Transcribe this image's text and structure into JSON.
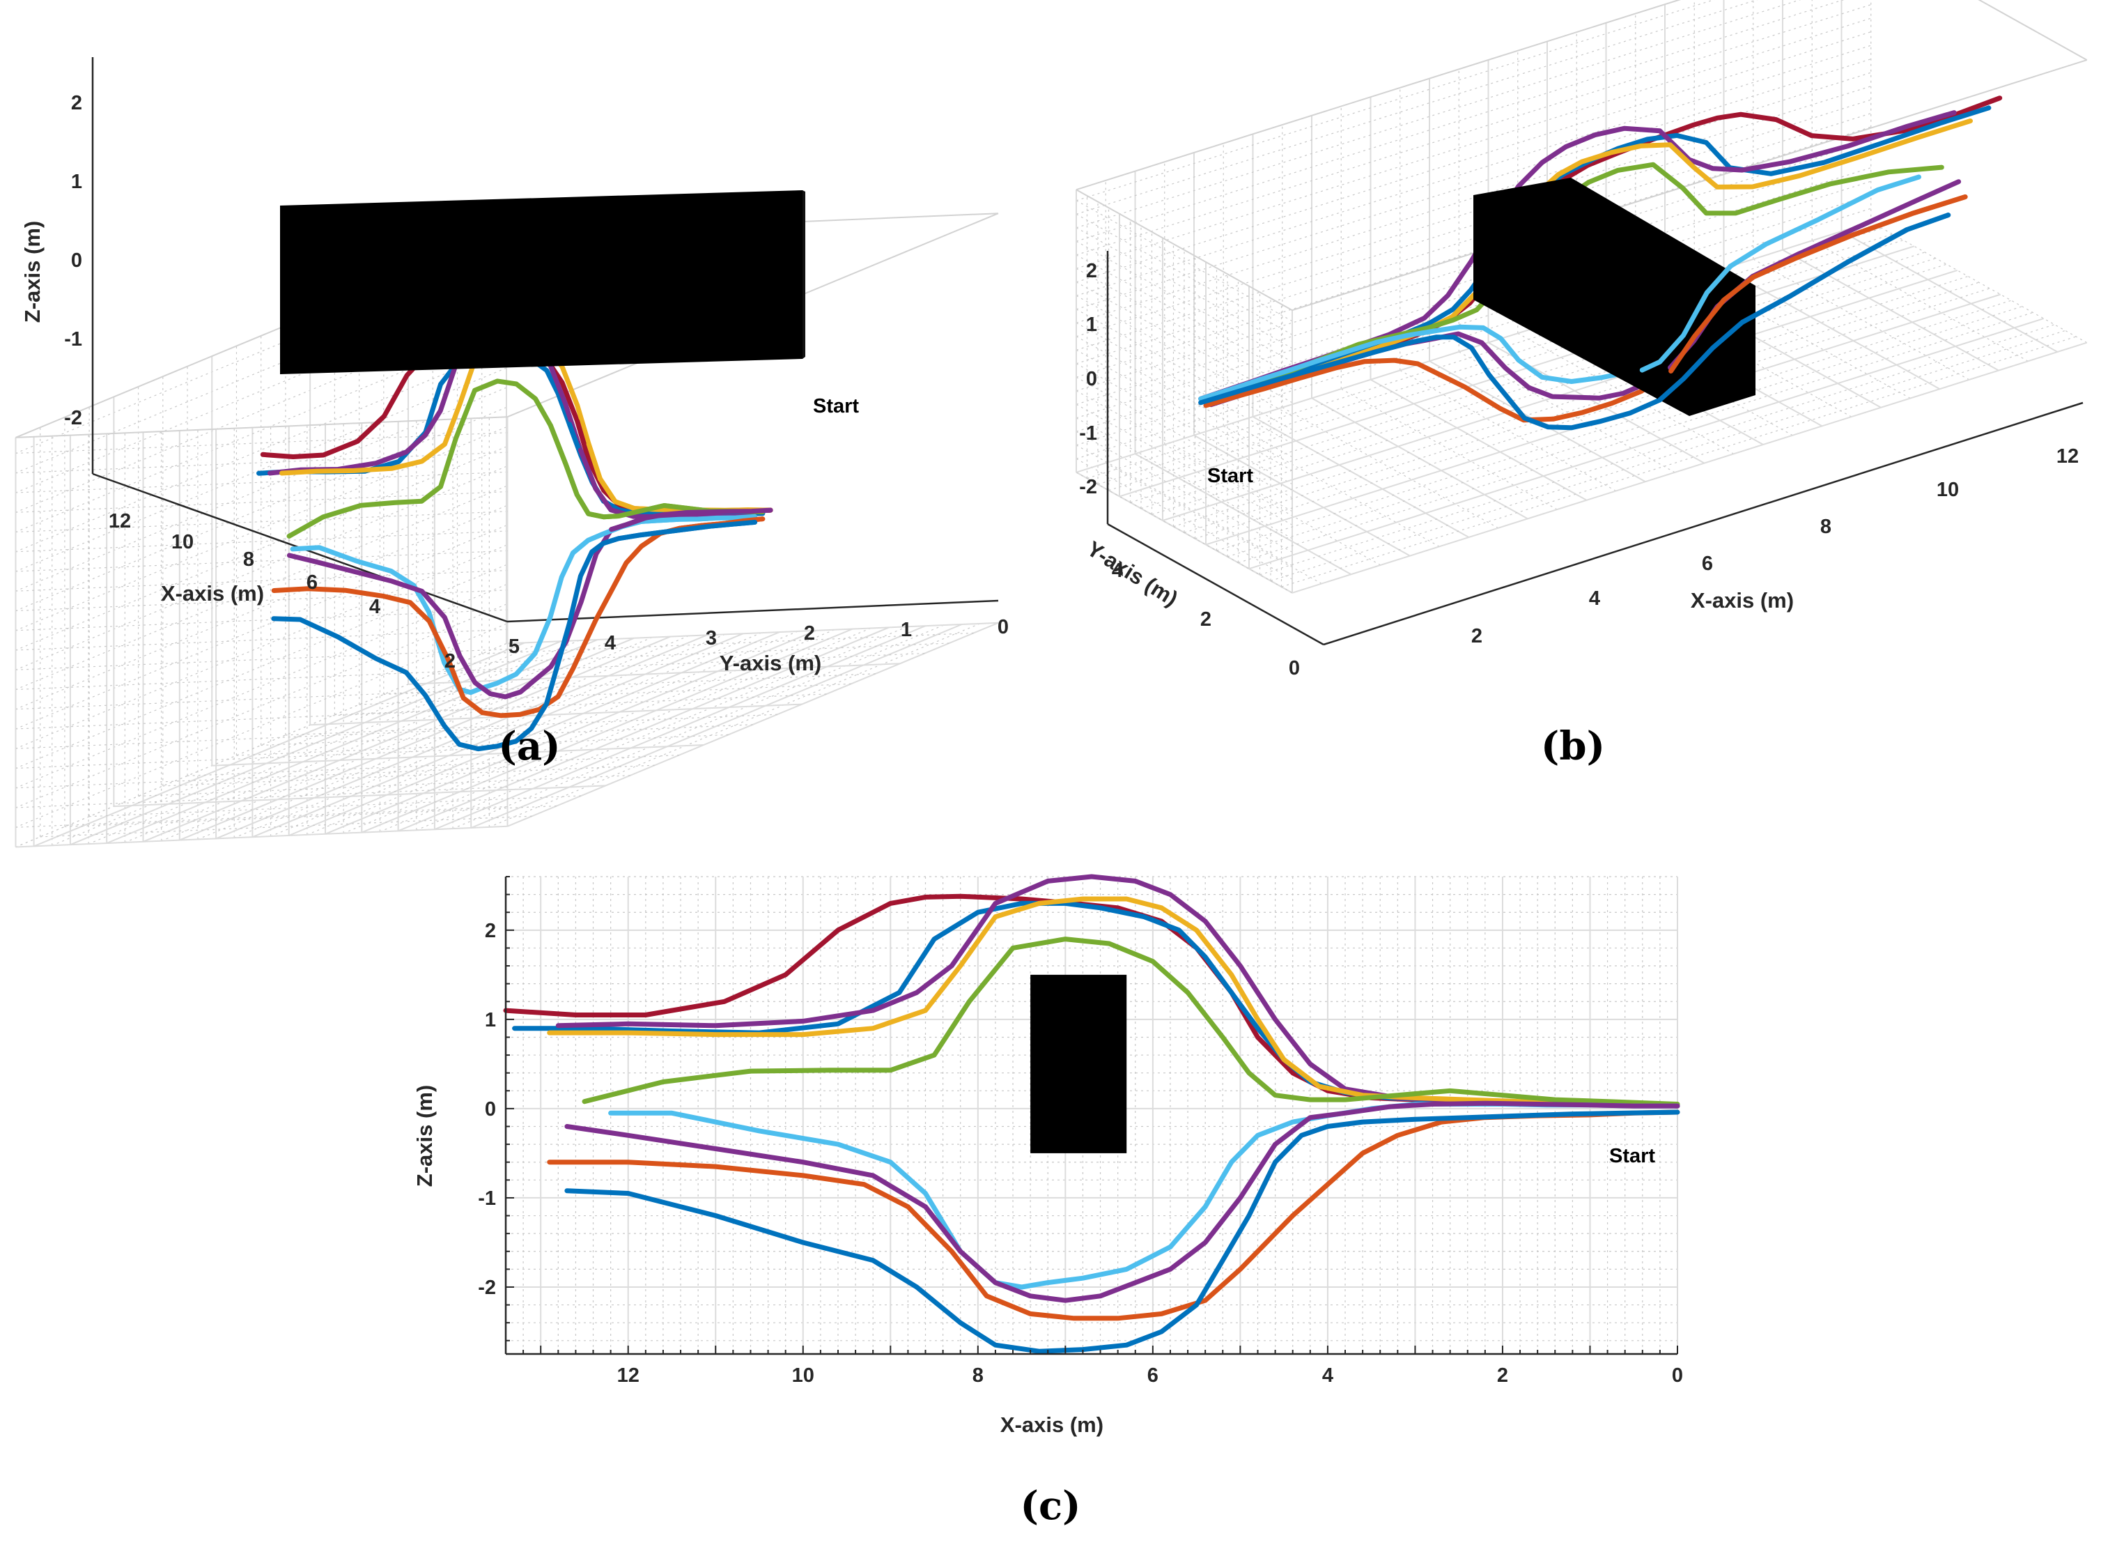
{
  "figure": {
    "panels": [
      {
        "label": "(a)"
      },
      {
        "label": "(b)"
      },
      {
        "label": "(c)"
      }
    ],
    "start_label": "Start"
  },
  "colors": {
    "blue": "#0072BD",
    "red_orange": "#D95319",
    "yellow": "#EDB120",
    "purple": "#7E2F8E",
    "green": "#77AC30",
    "light_blue": "#4DBEEE",
    "dark_red": "#A2142F",
    "obstacle": "#000000"
  },
  "chart_data": [
    {
      "id": "a",
      "type": "line",
      "view": "3d-front",
      "title": "",
      "xlabel": "X-axis (m)",
      "ylabel": "Y-axis (m)",
      "zlabel": "Z-axis (m)",
      "x_ticks": [
        "2",
        "4",
        "6",
        "8",
        "10",
        "12"
      ],
      "y_ticks": [
        "5",
        "4",
        "3",
        "2",
        "1",
        "0"
      ],
      "z_ticks": [
        "2",
        "1",
        "0",
        "-1",
        "-2"
      ],
      "xlim": [
        0,
        13.5
      ],
      "ylim": [
        0,
        5
      ],
      "zlim": [
        -2.6,
        2.6
      ],
      "annotation": "Start"
    },
    {
      "id": "b",
      "type": "line",
      "view": "3d-oblique",
      "title": "",
      "xlabel": "X-axis (m)",
      "ylabel": "Y-axis (m)",
      "zlabel": "",
      "x_ticks": [
        "2",
        "4",
        "6",
        "8",
        "10",
        "12"
      ],
      "y_ticks": [
        "0",
        "2",
        "4"
      ],
      "z_ticks": [
        "2",
        "1",
        "0",
        "-1",
        "-2"
      ],
      "xlim": [
        0,
        13.5
      ],
      "ylim": [
        0,
        5
      ],
      "zlim": [
        -2.6,
        2.6
      ],
      "annotation": "Start"
    },
    {
      "id": "c",
      "type": "line",
      "view": "2d-xz",
      "title": "",
      "xlabel": "X-axis (m)",
      "ylabel": "Z-axis (m)",
      "x_ticks": [
        "12",
        "10",
        "8",
        "6",
        "4",
        "2",
        "0"
      ],
      "y_ticks": [
        "2",
        "1",
        "0",
        "-1",
        "-2"
      ],
      "xlim": [
        13.4,
        0
      ],
      "ylim": [
        -2.75,
        2.6
      ],
      "grid": true,
      "annotation": "Start",
      "obstacle": {
        "x_range": [
          6.3,
          7.4
        ],
        "z_range": [
          -0.5,
          1.5
        ]
      },
      "series": [
        {
          "name": "dark_red",
          "color": "#A2142F",
          "x": [
            13.4,
            12.6,
            11.8,
            10.9,
            10.2,
            9.6,
            9.0,
            8.6,
            8.2,
            7.5,
            6.9,
            6.4,
            5.9,
            5.5,
            5.1,
            4.8,
            4.4,
            4.0,
            3.5,
            3.0,
            2.5,
            2.0,
            1.5,
            1.0,
            0.5,
            0.0
          ],
          "z": [
            1.1,
            1.05,
            1.05,
            1.2,
            1.5,
            2.0,
            2.3,
            2.37,
            2.38,
            2.35,
            2.3,
            2.25,
            2.1,
            1.8,
            1.3,
            0.8,
            0.4,
            0.2,
            0.12,
            0.1,
            0.08,
            0.07,
            0.06,
            0.05,
            0.04,
            0.03
          ]
        },
        {
          "name": "blue_upper",
          "color": "#0072BD",
          "x": [
            13.3,
            12.5,
            11.5,
            10.5,
            9.6,
            8.9,
            8.5,
            8.0,
            7.5,
            7.0,
            6.6,
            6.1,
            5.7,
            5.4,
            5.1,
            4.8,
            4.5,
            4.2,
            3.8,
            3.3,
            2.8,
            2.2,
            1.6,
            1.0,
            0.5,
            0.0
          ],
          "z": [
            0.9,
            0.9,
            0.87,
            0.85,
            0.95,
            1.3,
            1.9,
            2.2,
            2.3,
            2.3,
            2.25,
            2.15,
            2.0,
            1.7,
            1.3,
            0.9,
            0.55,
            0.3,
            0.18,
            0.12,
            0.1,
            0.08,
            0.06,
            0.05,
            0.04,
            0.03
          ]
        },
        {
          "name": "purple_upper",
          "color": "#7E2F8E",
          "x": [
            12.8,
            12.0,
            11.0,
            10.0,
            9.2,
            8.7,
            8.3,
            7.8,
            7.2,
            6.7,
            6.2,
            5.8,
            5.4,
            5.0,
            4.6,
            4.2,
            3.8,
            3.2,
            2.6,
            2.0,
            1.4,
            0.8,
            0.4,
            0.0
          ],
          "z": [
            0.93,
            0.95,
            0.93,
            0.98,
            1.1,
            1.3,
            1.6,
            2.3,
            2.55,
            2.6,
            2.55,
            2.4,
            2.1,
            1.6,
            1.0,
            0.5,
            0.22,
            0.12,
            0.1,
            0.08,
            0.07,
            0.05,
            0.04,
            0.03
          ]
        },
        {
          "name": "yellow",
          "color": "#EDB120",
          "x": [
            12.9,
            12.0,
            11.0,
            10.0,
            9.2,
            8.6,
            8.2,
            7.8,
            7.3,
            6.8,
            6.3,
            5.9,
            5.5,
            5.1,
            4.8,
            4.5,
            4.1,
            3.6,
            3.0,
            2.4,
            1.8,
            1.2,
            0.6,
            0.0
          ],
          "z": [
            0.85,
            0.85,
            0.83,
            0.83,
            0.9,
            1.1,
            1.6,
            2.15,
            2.3,
            2.35,
            2.35,
            2.25,
            2.0,
            1.5,
            1.0,
            0.55,
            0.25,
            0.15,
            0.12,
            0.1,
            0.08,
            0.06,
            0.05,
            0.03
          ]
        },
        {
          "name": "green",
          "color": "#77AC30",
          "x": [
            12.5,
            11.6,
            10.6,
            9.7,
            9.0,
            8.5,
            8.1,
            7.6,
            7.0,
            6.5,
            6.0,
            5.6,
            5.2,
            4.9,
            4.6,
            4.2,
            3.8,
            3.2,
            2.6,
            2.0,
            1.4,
            0.8,
            0.0
          ],
          "z": [
            0.08,
            0.3,
            0.42,
            0.43,
            0.43,
            0.6,
            1.2,
            1.8,
            1.9,
            1.85,
            1.65,
            1.3,
            0.8,
            0.4,
            0.15,
            0.1,
            0.1,
            0.15,
            0.2,
            0.15,
            0.1,
            0.08,
            0.05
          ]
        },
        {
          "name": "light_blue",
          "color": "#4DBEEE",
          "x": [
            12.2,
            11.5,
            10.5,
            9.6,
            9.0,
            8.6,
            8.2,
            7.8,
            7.5,
            7.2,
            6.8,
            6.3,
            5.8,
            5.4,
            5.1,
            4.8,
            4.4,
            4.0,
            3.5,
            3.0,
            2.5,
            2.0,
            1.5,
            1.0,
            0.5,
            0.0
          ],
          "z": [
            -0.05,
            -0.05,
            -0.25,
            -0.4,
            -0.6,
            -0.95,
            -1.6,
            -1.95,
            -2.0,
            -1.95,
            -1.9,
            -1.8,
            -1.55,
            -1.1,
            -0.6,
            -0.3,
            -0.15,
            -0.08,
            0.0,
            0.05,
            0.05,
            0.05,
            0.04,
            0.04,
            0.03,
            0.03
          ]
        },
        {
          "name": "purple_lower",
          "color": "#7E2F8E",
          "x": [
            12.7,
            12.0,
            11.0,
            10.0,
            9.2,
            8.6,
            8.2,
            7.8,
            7.4,
            7.0,
            6.6,
            6.2,
            5.8,
            5.4,
            5.0,
            4.6,
            4.2,
            3.8,
            3.3,
            2.8,
            2.2,
            1.6,
            1.0,
            0.5,
            0.0
          ],
          "z": [
            -0.2,
            -0.3,
            -0.45,
            -0.6,
            -0.75,
            -1.1,
            -1.6,
            -1.95,
            -2.1,
            -2.15,
            -2.1,
            -1.95,
            -1.8,
            -1.5,
            -1.0,
            -0.4,
            -0.1,
            -0.05,
            0.02,
            0.05,
            0.06,
            0.05,
            0.04,
            0.03,
            0.03
          ]
        },
        {
          "name": "red_orange",
          "color": "#D95319",
          "x": [
            12.9,
            12.0,
            11.0,
            10.0,
            9.3,
            8.8,
            8.3,
            7.9,
            7.4,
            6.9,
            6.4,
            5.9,
            5.4,
            5.0,
            4.7,
            4.4,
            4.0,
            3.6,
            3.2,
            2.7,
            2.2,
            1.6,
            1.0,
            0.5,
            0.0
          ],
          "z": [
            -0.6,
            -0.6,
            -0.65,
            -0.75,
            -0.85,
            -1.1,
            -1.6,
            -2.1,
            -2.3,
            -2.35,
            -2.35,
            -2.3,
            -2.15,
            -1.8,
            -1.5,
            -1.2,
            -0.85,
            -0.5,
            -0.3,
            -0.15,
            -0.1,
            -0.08,
            -0.07,
            -0.05,
            -0.04
          ]
        },
        {
          "name": "blue_lower",
          "color": "#0072BD",
          "x": [
            12.7,
            12.0,
            11.0,
            10.0,
            9.2,
            8.7,
            8.2,
            7.8,
            7.3,
            6.8,
            6.3,
            5.9,
            5.5,
            5.2,
            4.9,
            4.6,
            4.3,
            4.0,
            3.6,
            3.0,
            2.4,
            1.8,
            1.2,
            0.6,
            0.0
          ],
          "z": [
            -0.92,
            -0.95,
            -1.2,
            -1.5,
            -1.7,
            -2.0,
            -2.4,
            -2.65,
            -2.72,
            -2.7,
            -2.65,
            -2.5,
            -2.2,
            -1.7,
            -1.2,
            -0.6,
            -0.3,
            -0.2,
            -0.15,
            -0.12,
            -0.1,
            -0.08,
            -0.06,
            -0.05,
            -0.04
          ]
        }
      ]
    }
  ]
}
